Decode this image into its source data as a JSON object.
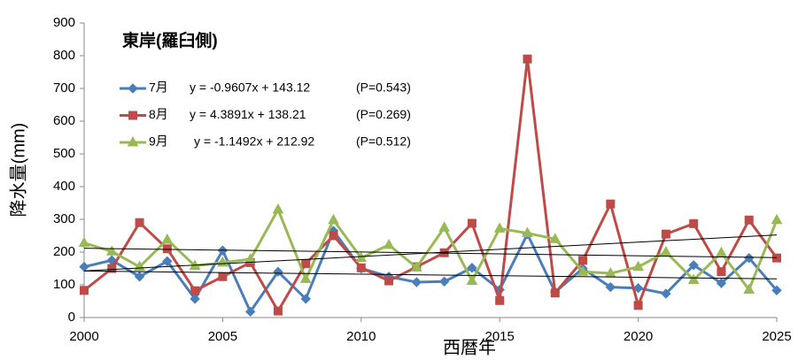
{
  "chart_data": {
    "type": "line",
    "title": "東岸(羅臼側)",
    "x_label": "西暦年",
    "y_label": "降水量(mm)",
    "x": [
      2000,
      2001,
      2002,
      2003,
      2004,
      2005,
      2006,
      2007,
      2008,
      2009,
      2010,
      2011,
      2012,
      2013,
      2014,
      2015,
      2016,
      2017,
      2018,
      2019,
      2020,
      2021,
      2022,
      2023,
      2024,
      2025
    ],
    "xlim": [
      2000,
      2025
    ],
    "xticks": [
      2000,
      2005,
      2010,
      2015,
      2020,
      2025
    ],
    "ylim": [
      0,
      900
    ],
    "yticks": [
      0,
      100,
      200,
      300,
      400,
      500,
      600,
      700,
      800,
      900
    ],
    "series": [
      {
        "name": "7月",
        "color": "#4a7ebb",
        "marker": "diamond",
        "equation": "y = -0.9607x + 143.12",
        "p_value": "(P=0.543)",
        "trend": {
          "slope": -0.9607,
          "intercept": 143.12
        },
        "values": [
          155,
          175,
          125,
          172,
          57,
          205,
          18,
          140,
          57,
          265,
          150,
          125,
          108,
          110,
          152,
          85,
          255,
          78,
          150,
          93,
          90,
          73,
          160,
          105,
          182,
          83
        ]
      },
      {
        "name": "8月",
        "color": "#be4b48",
        "marker": "square",
        "equation": "y = 4.3891x + 138.21",
        "p_value": "(P=0.269)",
        "trend": {
          "slope": 4.3891,
          "intercept": 138.21
        },
        "values": [
          83,
          150,
          290,
          210,
          82,
          125,
          168,
          20,
          165,
          250,
          152,
          112,
          155,
          198,
          288,
          52,
          790,
          75,
          175,
          347,
          37,
          255,
          287,
          140,
          298,
          182
        ]
      },
      {
        "name": "9月",
        "color": "#98b954",
        "marker": "triangle",
        "equation": "y = -1.1492x + 212.92",
        "p_value": "(P=0.512)",
        "trend": {
          "slope": -1.1492,
          "intercept": 212.92
        },
        "values": [
          228,
          202,
          155,
          238,
          158,
          168,
          178,
          330,
          118,
          298,
          182,
          222,
          153,
          275,
          112,
          272,
          258,
          240,
          140,
          135,
          155,
          200,
          115,
          198,
          85,
          298
        ]
      }
    ]
  }
}
